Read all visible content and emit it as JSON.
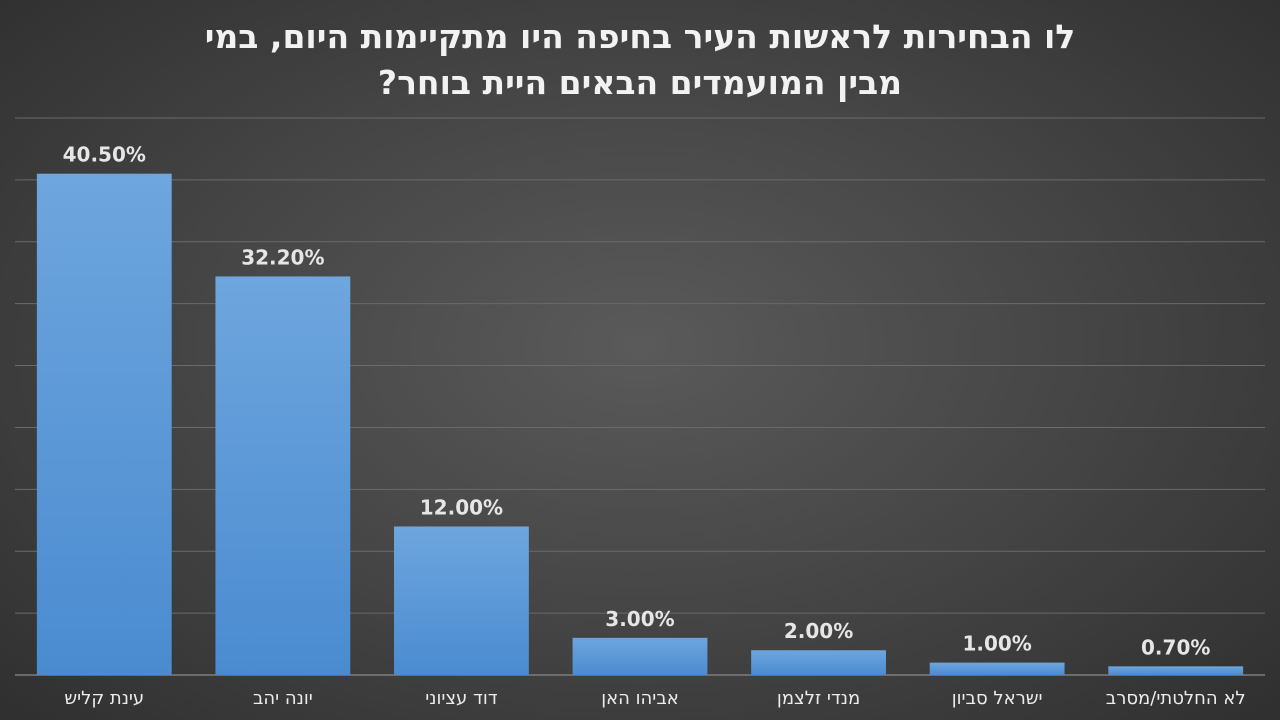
{
  "title_lines": [
    "לו הבחירות לראשות העיר בחיפה היו מתקיימות היום, במי",
    "מבין המועמדים הבאים היית בוחר?"
  ],
  "chart_data": {
    "type": "bar",
    "title": "לו הבחירות לראשות העיר בחיפה היו מתקיימות היום, במי מבין המועמדים הבאים היית בוחר?",
    "categories": [
      "עינת קליש",
      "יונה יהב",
      "דוד עציוני",
      "אביהו האן",
      "מנדי זלצמן",
      "ישראל סביון",
      "לא החלטתי/מסרב"
    ],
    "values": [
      40.5,
      32.2,
      12.0,
      3.0,
      2.0,
      1.0,
      0.7
    ],
    "value_labels": [
      "40.50%",
      "32.20%",
      "12.00%",
      "3.00%",
      "2.00%",
      "1.00%",
      "0.70%"
    ],
    "xlabel": "",
    "ylabel": "",
    "ylim": [
      0,
      45
    ],
    "grid_step": 5,
    "grid": true,
    "legend": "none",
    "bar_color": "#5b9bd5"
  }
}
